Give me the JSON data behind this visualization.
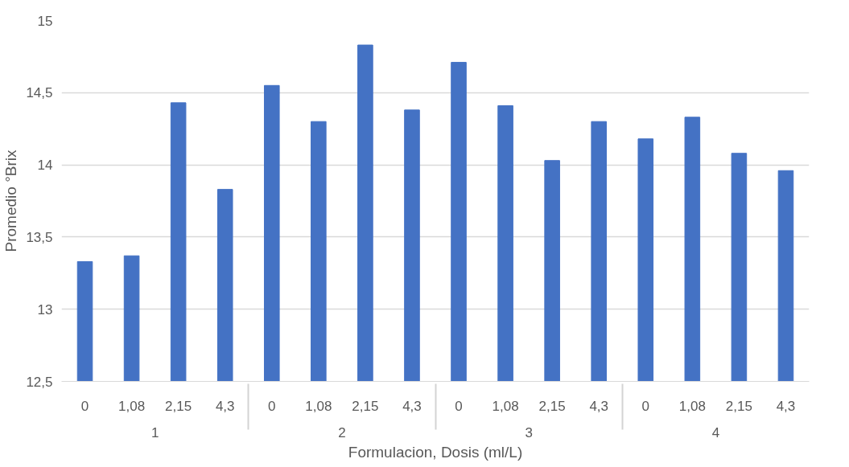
{
  "chart_data": {
    "type": "bar",
    "xlabel": "Formulacion, Dosis (ml/L)",
    "ylabel": "Promedio °Brix",
    "categories": [
      "0",
      "1,08",
      "2,15",
      "4,3",
      "0",
      "1,08",
      "2,15",
      "4,3",
      "0",
      "1,08",
      "2,15",
      "4,3",
      "0",
      "1,08",
      "2,15",
      "4,3"
    ],
    "annotations": [
      "1",
      "2",
      "3",
      "4"
    ],
    "values": [
      13.33,
      13.37,
      14.43,
      13.83,
      14.55,
      14.3,
      14.83,
      14.38,
      14.71,
      14.41,
      14.03,
      14.3,
      14.18,
      14.33,
      14.08,
      13.96
    ],
    "color": "#4472c4",
    "ylim": [
      12.5,
      15
    ],
    "yticks": [
      {
        "value": 12.5,
        "label": "12,5"
      },
      13,
      {
        "value": 13.5,
        "label": "13,5"
      },
      14,
      {
        "value": 14.5,
        "label": "14,5"
      },
      15
    ],
    "grid": "y"
  }
}
